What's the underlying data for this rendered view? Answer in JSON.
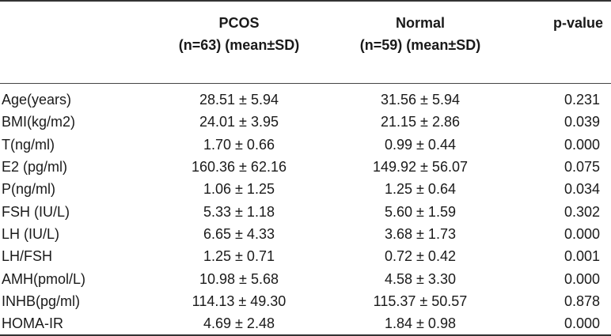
{
  "table": {
    "headers": {
      "label": "",
      "pcos_line1": "PCOS",
      "pcos_line2": "(n=63) (mean±SD)",
      "normal_line1": "Normal",
      "normal_line2": "(n=59) (mean±SD)",
      "pvalue": "p-value"
    },
    "rows": [
      {
        "label": "Age(years)",
        "pcos": "28.51 ± 5.94",
        "normal": "31.56 ± 5.94",
        "p": "0.231"
      },
      {
        "label": "BMI(kg/m2)",
        "pcos": "24.01 ± 3.95",
        "normal": "21.15 ± 2.86",
        "p": "0.039"
      },
      {
        "label": "T(ng/ml)",
        "pcos": "1.70 ± 0.66",
        "normal": "0.99 ± 0.44",
        "p": "0.000"
      },
      {
        "label": "E2 (pg/ml)",
        "pcos": "160.36 ± 62.16",
        "normal": "149.92 ± 56.07",
        "p": "0.075"
      },
      {
        "label": "P(ng/ml)",
        "pcos": "1.06 ± 1.25",
        "normal": "1.25 ± 0.64",
        "p": "0.034"
      },
      {
        "label": "FSH (IU/L)",
        "pcos": "5.33 ± 1.18",
        "normal": "5.60 ± 1.59",
        "p": "0.302"
      },
      {
        "label": "LH (IU/L)",
        "pcos": "6.65 ± 4.33",
        "normal": "3.68 ± 1.73",
        "p": "0.000"
      },
      {
        "label": "LH/FSH",
        "pcos": "1.25 ± 0.71",
        "normal": "0.72 ± 0.42",
        "p": "0.001"
      },
      {
        "label": "AMH(pmol/L)",
        "pcos": "10.98 ± 5.68",
        "normal": "4.58 ± 3.30",
        "p": "0.000"
      },
      {
        "label": "INHB(pg/ml)",
        "pcos": "114.13 ± 49.30",
        "normal": "115.37 ± 50.57",
        "p": "0.878"
      },
      {
        "label": "HOMA-IR",
        "pcos": "4.69 ± 2.48",
        "normal": "1.84 ± 0.98",
        "p": "0.000"
      }
    ]
  }
}
